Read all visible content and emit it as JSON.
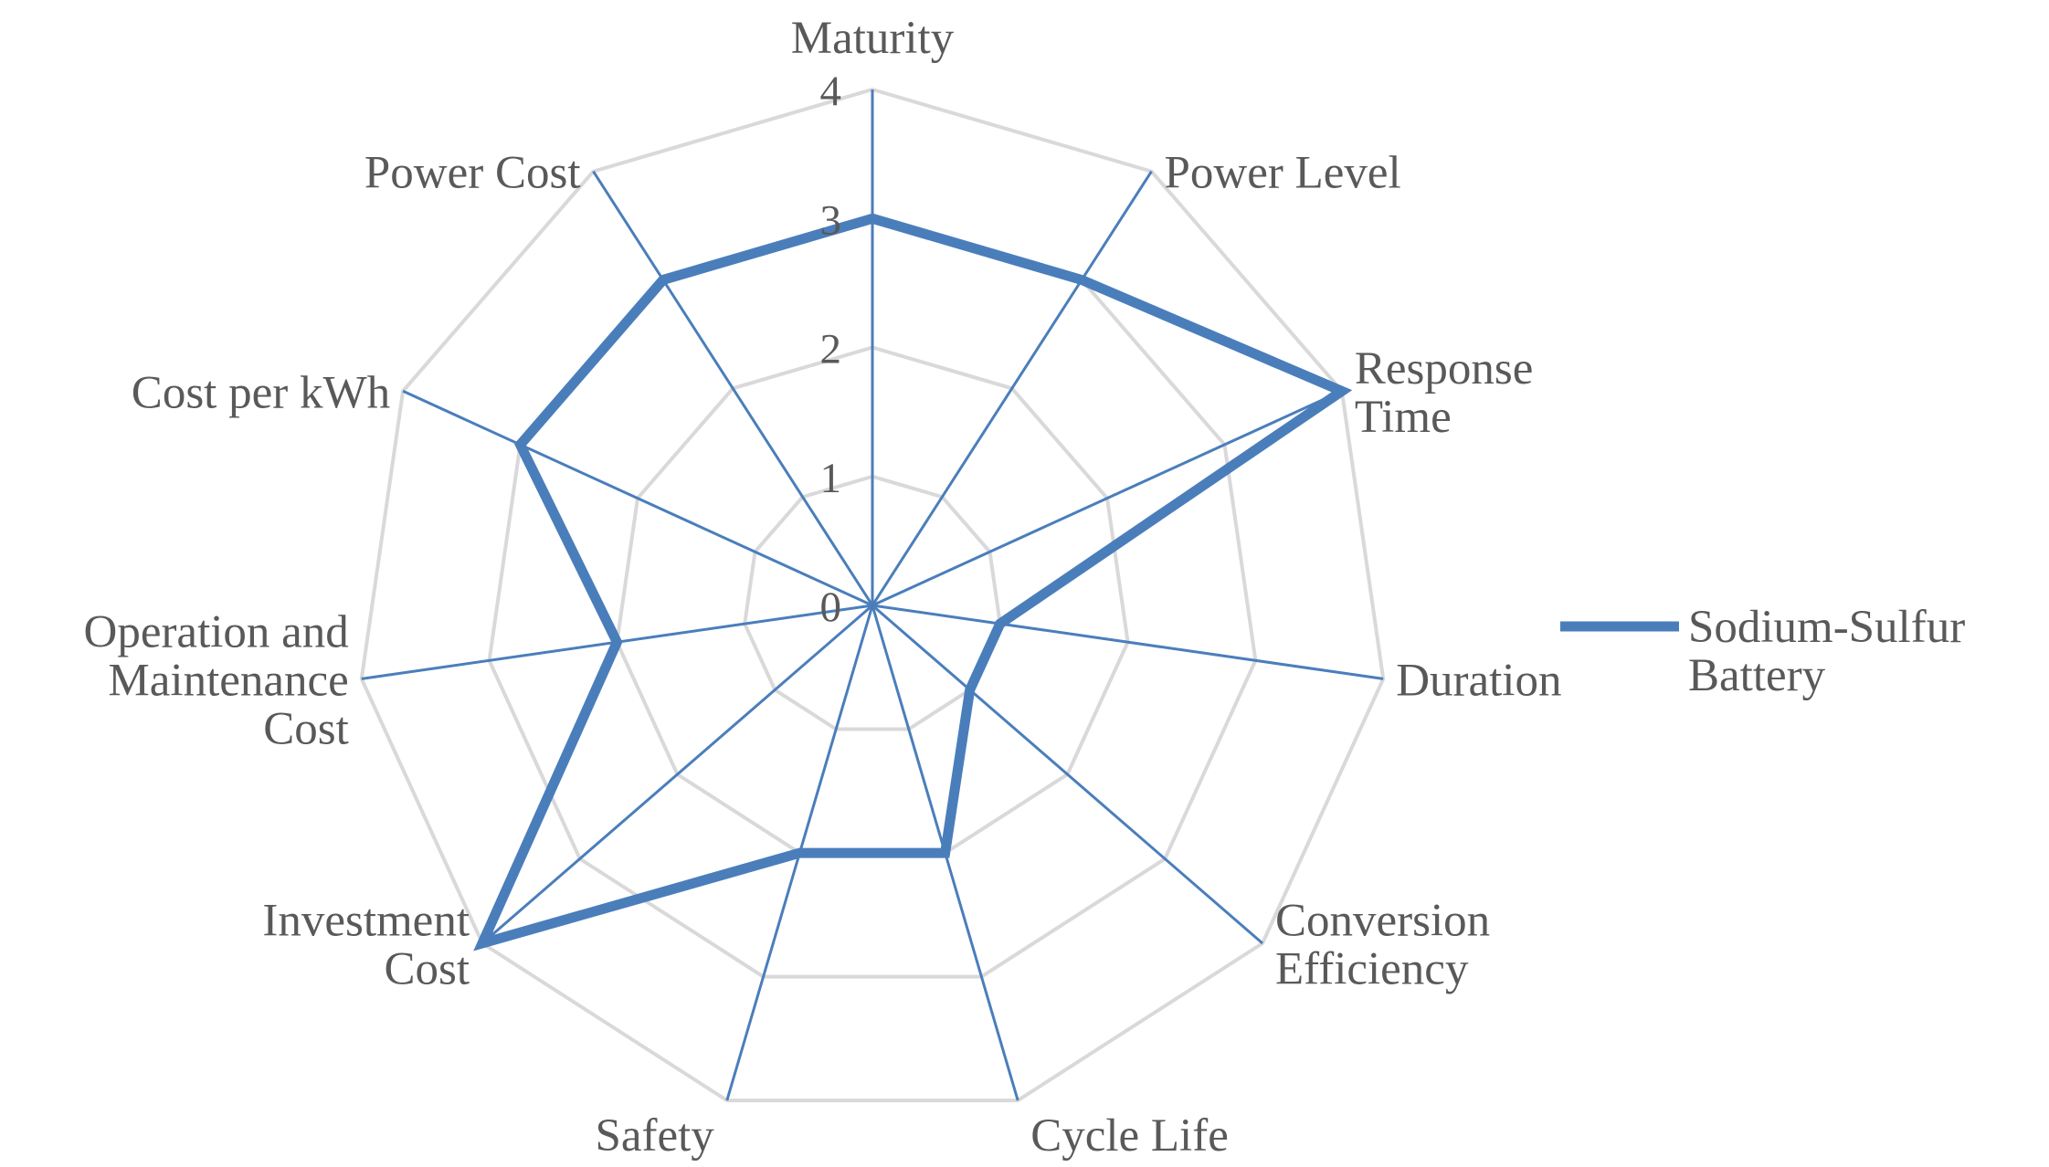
{
  "chart_data": {
    "type": "radar",
    "categories": [
      "Maturity",
      "Power Level",
      "Response Time",
      "Duration",
      "Conversion Efficiency",
      "Cycle Life",
      "Safety",
      "Investment Cost",
      "Operation and Maintenance Cost",
      "Cost per kWh",
      "Power Cost"
    ],
    "category_lines": [
      [
        "Maturity"
      ],
      [
        "Power Level"
      ],
      [
        "Response",
        "Time"
      ],
      [
        "Duration"
      ],
      [
        "Conversion",
        "Efficiency"
      ],
      [
        "Cycle Life"
      ],
      [
        "Safety"
      ],
      [
        "Investment",
        "Cost"
      ],
      [
        "Operation and",
        "Maintenance",
        "Cost"
      ],
      [
        "Cost per kWh"
      ],
      [
        "Power Cost"
      ]
    ],
    "series": [
      {
        "name": "Sodium-Sulfur Battery",
        "values": [
          3,
          3,
          4,
          1,
          1,
          2,
          2,
          4,
          2,
          3,
          3
        ],
        "color": "#4a7ebb"
      }
    ],
    "r_range": [
      0,
      4
    ],
    "r_ticks": [
      "0",
      "1",
      "2",
      "3",
      "4"
    ],
    "grid": true,
    "legend_position": "right",
    "legend_lines": [
      "Sodium-Sulfur",
      "Battery"
    ],
    "colors": {
      "grid": "#d9d9d9",
      "spoke": "#4a7ebb",
      "series": "#4a7ebb",
      "text": "#595959"
    }
  }
}
